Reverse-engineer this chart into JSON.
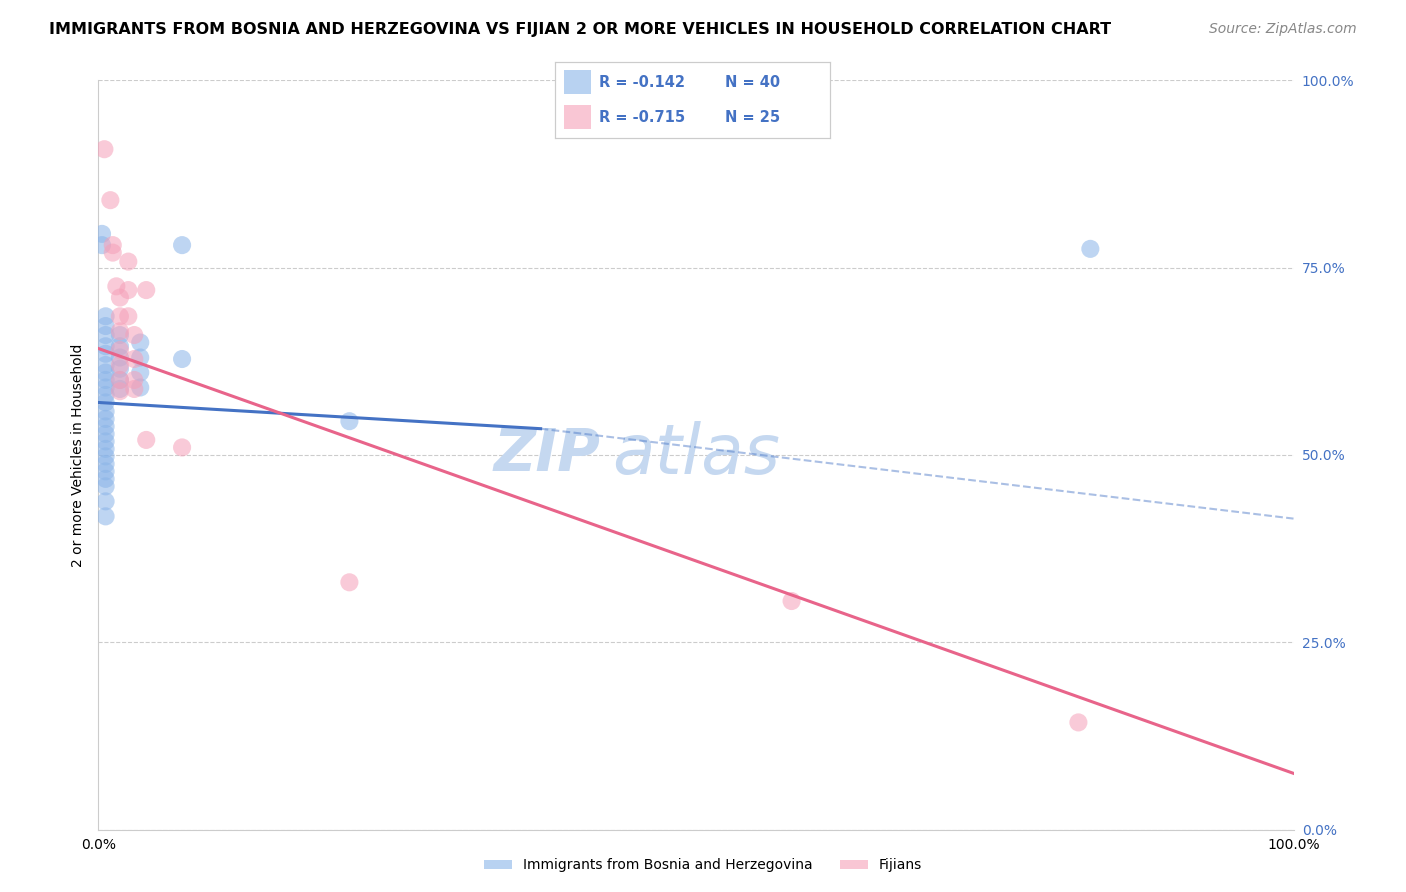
{
  "title": "IMMIGRANTS FROM BOSNIA AND HERZEGOVINA VS FIJIAN 2 OR MORE VEHICLES IN HOUSEHOLD CORRELATION CHART",
  "source": "Source: ZipAtlas.com",
  "ylabel": "2 or more Vehicles in Household",
  "xlim": [
    0,
    1.0
  ],
  "ylim": [
    0,
    1.0
  ],
  "xtick_labels": [
    "0.0%",
    "100.0%"
  ],
  "ytick_labels": [
    "0.0%",
    "25.0%",
    "50.0%",
    "75.0%",
    "100.0%"
  ],
  "ytick_positions": [
    0.0,
    0.25,
    0.5,
    0.75,
    1.0
  ],
  "grid_color": "#cccccc",
  "blue_color": "#8ab4e8",
  "pink_color": "#f5a0b8",
  "blue_line_color": "#4472C4",
  "pink_line_color": "#e8648a",
  "watermark_zip": "ZIP",
  "watermark_atlas": "atlas",
  "legend_R_blue": "R = -0.142",
  "legend_N_blue": "N = 40",
  "legend_R_pink": "R = -0.715",
  "legend_N_pink": "N = 25",
  "legend_label_blue": "Immigrants from Bosnia and Herzegovina",
  "legend_label_pink": "Fijians",
  "blue_points": [
    [
      0.003,
      0.795
    ],
    [
      0.003,
      0.78
    ],
    [
      0.006,
      0.685
    ],
    [
      0.006,
      0.672
    ],
    [
      0.006,
      0.66
    ],
    [
      0.006,
      0.645
    ],
    [
      0.006,
      0.635
    ],
    [
      0.006,
      0.62
    ],
    [
      0.006,
      0.61
    ],
    [
      0.006,
      0.6
    ],
    [
      0.006,
      0.59
    ],
    [
      0.006,
      0.58
    ],
    [
      0.006,
      0.57
    ],
    [
      0.006,
      0.558
    ],
    [
      0.006,
      0.548
    ],
    [
      0.006,
      0.538
    ],
    [
      0.006,
      0.528
    ],
    [
      0.006,
      0.518
    ],
    [
      0.006,
      0.508
    ],
    [
      0.006,
      0.498
    ],
    [
      0.006,
      0.488
    ],
    [
      0.006,
      0.478
    ],
    [
      0.006,
      0.468
    ],
    [
      0.006,
      0.458
    ],
    [
      0.006,
      0.438
    ],
    [
      0.006,
      0.418
    ],
    [
      0.018,
      0.66
    ],
    [
      0.018,
      0.645
    ],
    [
      0.018,
      0.63
    ],
    [
      0.018,
      0.615
    ],
    [
      0.018,
      0.6
    ],
    [
      0.018,
      0.588
    ],
    [
      0.035,
      0.65
    ],
    [
      0.035,
      0.63
    ],
    [
      0.035,
      0.61
    ],
    [
      0.035,
      0.59
    ],
    [
      0.07,
      0.78
    ],
    [
      0.07,
      0.628
    ],
    [
      0.21,
      0.545
    ],
    [
      0.83,
      0.775
    ]
  ],
  "pink_points": [
    [
      0.005,
      0.908
    ],
    [
      0.01,
      0.84
    ],
    [
      0.012,
      0.78
    ],
    [
      0.012,
      0.77
    ],
    [
      0.015,
      0.725
    ],
    [
      0.018,
      0.71
    ],
    [
      0.018,
      0.685
    ],
    [
      0.018,
      0.665
    ],
    [
      0.018,
      0.64
    ],
    [
      0.018,
      0.62
    ],
    [
      0.018,
      0.6
    ],
    [
      0.018,
      0.585
    ],
    [
      0.025,
      0.758
    ],
    [
      0.025,
      0.72
    ],
    [
      0.025,
      0.685
    ],
    [
      0.03,
      0.66
    ],
    [
      0.03,
      0.628
    ],
    [
      0.03,
      0.6
    ],
    [
      0.03,
      0.588
    ],
    [
      0.04,
      0.72
    ],
    [
      0.04,
      0.52
    ],
    [
      0.07,
      0.51
    ],
    [
      0.21,
      0.33
    ],
    [
      0.58,
      0.305
    ],
    [
      0.82,
      0.143
    ]
  ],
  "blue_solid_line": [
    [
      0.0,
      0.57
    ],
    [
      0.37,
      0.535
    ]
  ],
  "blue_dash_line": [
    [
      0.37,
      0.535
    ],
    [
      1.0,
      0.415
    ]
  ],
  "pink_line": [
    [
      0.0,
      0.642
    ],
    [
      1.0,
      0.075
    ]
  ],
  "title_fontsize": 11.5,
  "source_fontsize": 10,
  "label_fontsize": 10,
  "tick_fontsize": 10,
  "watermark_fontsize_zip": 42,
  "watermark_fontsize_atlas": 50,
  "watermark_color": "#c5d8f0",
  "right_tick_color": "#4472C4"
}
